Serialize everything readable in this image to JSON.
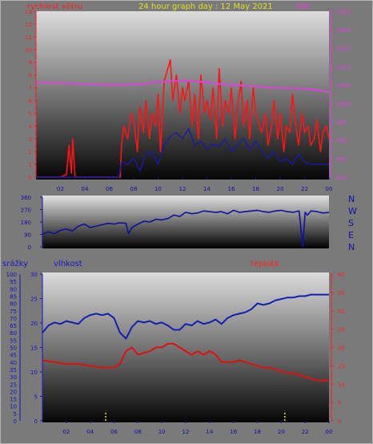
{
  "header": {
    "wind_label": "rychlost větru",
    "title": "24 hour graph day : 12 May 2021",
    "pressure_label": "tlak"
  },
  "bottom_header": {
    "rain_label": "srážky",
    "humidity_label": "vlhkost",
    "temp_label": "teplota"
  },
  "direction_labels": [
    "N",
    "W",
    "S",
    "E",
    "N"
  ],
  "colors": {
    "wind": "#ff1414",
    "wind_avg": "#1a1aa8",
    "pressure": "#e040e0",
    "direction": "#1010a0",
    "humidity": "#1020b0",
    "temperature": "#e01010",
    "rain": "#e8e820",
    "title": "#e0e020",
    "wind_axis": "#ff2020",
    "pressure_axis": "#e040e0",
    "rain_axis": "#1515c0",
    "temp_axis": "#ff2020"
  },
  "chart_data": [
    {
      "type": "line",
      "name": "wind-pressure",
      "x_ticks": [
        "02",
        "04",
        "06",
        "08",
        "10",
        "12",
        "14",
        "16",
        "18",
        "20",
        "22",
        "00"
      ],
      "xlim": [
        0,
        24
      ],
      "y_left": {
        "label": "rychlost větru",
        "ylim": [
          0,
          13
        ],
        "ticks": [
          0,
          1,
          2,
          3,
          4,
          5,
          6,
          7,
          8,
          9,
          10,
          11,
          12,
          13
        ]
      },
      "y_right": {
        "label": "tlak",
        "ylim": [
          980,
          1025
        ],
        "ticks": [
          980,
          985,
          990,
          995,
          1000,
          1005,
          1010,
          1015,
          1020,
          1025
        ]
      },
      "series": [
        {
          "name": "wind gust",
          "x": [
            0,
            1,
            2,
            2.5,
            2.7,
            2.9,
            3.0,
            3.2,
            4,
            5,
            6,
            6.5,
            6.9,
            7.0,
            7.2,
            7.5,
            7.8,
            8,
            8.3,
            8.5,
            8.8,
            9,
            9.3,
            9.5,
            9.8,
            10,
            10.2,
            10.5,
            10.8,
            11,
            11.2,
            11.5,
            11.8,
            12,
            12.2,
            12.5,
            12.8,
            13,
            13.3,
            13.5,
            13.8,
            14,
            14.3,
            14.5,
            14.8,
            15,
            15.3,
            15.5,
            15.8,
            16,
            16.3,
            16.5,
            16.8,
            17,
            17.3,
            17.5,
            17.8,
            18,
            18.3,
            18.5,
            18.8,
            19,
            19.3,
            19.5,
            19.8,
            20,
            20.3,
            20.5,
            20.8,
            21,
            21.3,
            21.5,
            21.8,
            22,
            22.3,
            22.5,
            22.8,
            23,
            23.3,
            23.5,
            23.8,
            24
          ],
          "y": [
            0,
            0,
            0,
            0.2,
            2.5,
            0.3,
            3.0,
            0,
            0,
            0,
            0,
            0,
            0,
            2.5,
            4,
            3,
            5,
            4.5,
            2,
            5.5,
            3.5,
            6,
            3,
            5,
            4,
            6.5,
            2,
            7.5,
            8.5,
            9.2,
            6,
            8,
            5,
            7,
            6,
            7.5,
            4,
            6.5,
            3,
            8,
            5,
            6,
            4.5,
            7,
            3,
            8.5,
            4,
            6,
            5,
            7,
            3,
            5.5,
            7.5,
            4,
            6,
            3,
            7,
            5,
            4,
            3.5,
            5,
            2.5,
            4,
            6,
            3,
            5,
            2,
            4,
            3.5,
            6.5,
            4,
            2.5,
            5,
            3.5,
            4,
            2.5,
            3,
            4.5,
            2,
            3.5,
            4,
            3
          ]
        },
        {
          "name": "wind average",
          "x": [
            0,
            2,
            4,
            6,
            6.8,
            7,
            7.5,
            8,
            8.5,
            9,
            9.5,
            10,
            10.5,
            11,
            11.5,
            12,
            12.5,
            13,
            13.5,
            14,
            14.5,
            15,
            15.5,
            16,
            16.5,
            17,
            17.5,
            18,
            18.5,
            19,
            19.5,
            20,
            20.5,
            21,
            21.5,
            22,
            22.5,
            23,
            23.5,
            24
          ],
          "y": [
            0,
            0,
            0,
            0,
            0,
            1.2,
            1.0,
            1.5,
            0.5,
            1.8,
            2.0,
            1.0,
            2.5,
            3.2,
            3.5,
            3.0,
            3.8,
            2.5,
            2.8,
            2.2,
            2.6,
            2.4,
            3.0,
            2.0,
            2.5,
            3.0,
            2.2,
            2.8,
            2.0,
            1.5,
            2.0,
            1.2,
            1.5,
            1.0,
            1.8,
            1.2,
            1.0,
            1.0,
            1.0,
            1.0
          ]
        },
        {
          "name": "pressure",
          "axis": "right",
          "x": [
            0,
            1,
            2,
            3,
            4,
            5,
            6,
            7,
            8,
            9,
            10,
            11,
            12,
            13,
            14,
            15,
            16,
            17,
            18,
            19,
            20,
            21,
            22,
            23,
            24
          ],
          "y": [
            1005.6,
            1005.6,
            1005.5,
            1005.4,
            1005.2,
            1005.1,
            1005.0,
            1005.0,
            1005.1,
            1005.4,
            1005.8,
            1006.0,
            1006.1,
            1006.0,
            1005.7,
            1005.3,
            1005.0,
            1004.8,
            1004.6,
            1004.3,
            1004.2,
            1004.1,
            1004.0,
            1003.6,
            1003.0
          ]
        }
      ]
    },
    {
      "type": "line",
      "name": "wind-direction",
      "x_ticks": [
        "02",
        "04",
        "06",
        "08",
        "10",
        "12",
        "14",
        "16",
        "18",
        "20",
        "22",
        "00"
      ],
      "xlim": [
        0,
        24
      ],
      "ylim": [
        0,
        360
      ],
      "ticks": [
        0,
        90,
        180,
        270,
        360
      ],
      "series": [
        {
          "name": "wind direction",
          "x": [
            0,
            0.5,
            1,
            1.5,
            2,
            2.5,
            3,
            3.5,
            4,
            4.5,
            5,
            5.5,
            6,
            6.5,
            7,
            7.2,
            7.5,
            8,
            8.5,
            9,
            9.5,
            10,
            10.5,
            11,
            11.5,
            12,
            12.5,
            13,
            13.5,
            14,
            14.5,
            15,
            15.5,
            16,
            16.5,
            17,
            17.5,
            18,
            18.5,
            19,
            19.5,
            20,
            20.5,
            21,
            21.5,
            21.8,
            22,
            22.2,
            22.5,
            23,
            23.5,
            24
          ],
          "y": [
            90,
            110,
            95,
            120,
            130,
            115,
            150,
            165,
            140,
            150,
            160,
            170,
            165,
            175,
            170,
            95,
            140,
            165,
            185,
            180,
            200,
            195,
            205,
            230,
            220,
            250,
            240,
            245,
            260,
            255,
            250,
            255,
            240,
            265,
            250,
            255,
            260,
            265,
            255,
            250,
            260,
            265,
            255,
            250,
            260,
            0,
            250,
            230,
            260,
            255,
            245,
            250
          ]
        }
      ]
    },
    {
      "type": "line",
      "name": "rain-humidity-temperature",
      "x_ticks": [
        "02",
        "04",
        "06",
        "08",
        "10",
        "12",
        "14",
        "16",
        "18",
        "20",
        "22",
        "00"
      ],
      "xlim": [
        0,
        24
      ],
      "y_humidity": {
        "label": "vlhkost",
        "ylim": [
          0,
          100
        ],
        "ticks": [
          0,
          5,
          10,
          15,
          20,
          25,
          30,
          35,
          40,
          45,
          50,
          55,
          60,
          65,
          70,
          75,
          80,
          85,
          90,
          95,
          100
        ]
      },
      "y_rain": {
        "label": "srážky",
        "ylim": [
          0,
          30
        ],
        "ticks": [
          0,
          5,
          10,
          15,
          20,
          25,
          30
        ]
      },
      "y_temp": {
        "label": "teplota",
        "ylim": [
          0,
          40
        ],
        "ticks": [
          0,
          5,
          10,
          15,
          20,
          25,
          30,
          35,
          40
        ]
      },
      "series": [
        {
          "name": "humidity",
          "x": [
            0,
            0.5,
            1,
            1.5,
            2,
            2.5,
            3,
            3.5,
            4,
            4.5,
            5,
            5.5,
            6,
            6.5,
            7,
            7.5,
            8,
            8.5,
            9,
            9.5,
            10,
            10.5,
            11,
            11.5,
            12,
            12.5,
            13,
            13.5,
            14,
            14.5,
            15,
            15.5,
            16,
            16.5,
            17,
            17.5,
            18,
            18.5,
            19,
            19.5,
            20,
            20.5,
            21,
            21.5,
            22,
            22.5,
            23,
            23.5,
            24
          ],
          "y": [
            60,
            65,
            67,
            66,
            68,
            67,
            66,
            70,
            72,
            73,
            72,
            73,
            70,
            60,
            56,
            64,
            68,
            67,
            68,
            66,
            67,
            65,
            62,
            62,
            66,
            65,
            68,
            66,
            67,
            69,
            66,
            70,
            72,
            73,
            74,
            76,
            80,
            79,
            80,
            82,
            83,
            84,
            84,
            85,
            85,
            86,
            86,
            86,
            86
          ]
        },
        {
          "name": "temperature",
          "x": [
            0,
            1,
            2,
            3,
            4,
            5,
            6,
            6.5,
            7,
            7.5,
            8,
            8.5,
            9,
            9.5,
            10,
            10.5,
            11,
            11.5,
            12,
            12.5,
            13,
            13.5,
            14,
            14.5,
            15,
            15.5,
            16,
            16.5,
            17,
            17.5,
            18,
            18.5,
            19,
            19.5,
            20,
            20.5,
            21,
            21.5,
            22,
            22.5,
            23,
            23.5,
            24
          ],
          "y": [
            16.5,
            16,
            15.5,
            15.5,
            15,
            14.5,
            14.5,
            15.5,
            19,
            20,
            18,
            18.5,
            19,
            20,
            20,
            21,
            21,
            20,
            19,
            18,
            19,
            18,
            19,
            18,
            16,
            16,
            16,
            16.5,
            16,
            15.5,
            15,
            14.5,
            14.5,
            14,
            13.5,
            13,
            13,
            12.5,
            12,
            11.5,
            11,
            11,
            11
          ]
        },
        {
          "name": "rain",
          "axis": "rain",
          "x": [
            5.3,
            20.3
          ],
          "y": [
            2,
            2
          ]
        }
      ]
    }
  ]
}
